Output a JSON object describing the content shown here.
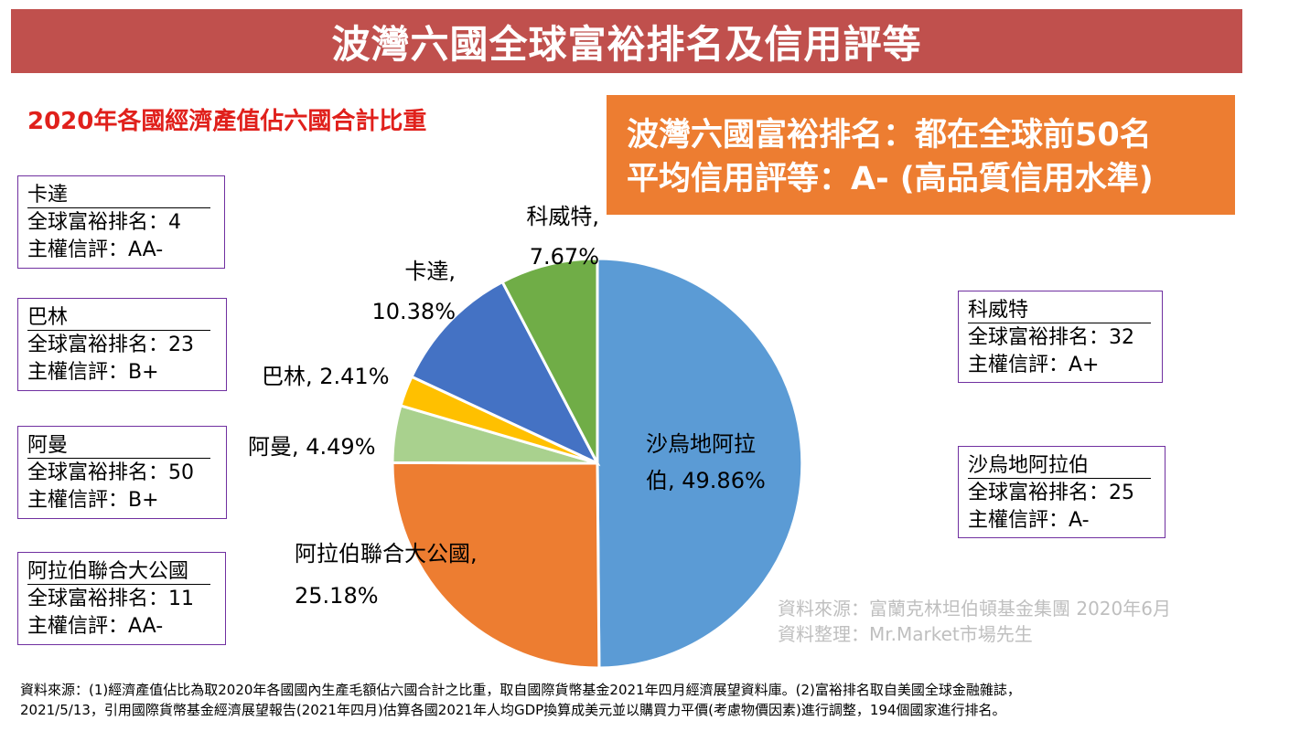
{
  "header": {
    "title": "波灣六國全球富裕排名及信用評等"
  },
  "subtitle": "2020年各國經濟產值佔六國合計比重",
  "highlight": {
    "line1": "波灣六國富裕排名：都在全球前50名",
    "line2": "平均信用評等：A- (高品質信用水準)"
  },
  "info_boxes": [
    {
      "name": "卡達",
      "rank": "全球富裕排名：4",
      "rating": "主權信評：AA-"
    },
    {
      "name": "巴林",
      "rank": "全球富裕排名：23",
      "rating": "主權信評：B+"
    },
    {
      "name": "阿曼",
      "rank": "全球富裕排名：50",
      "rating": "主權信評：B+"
    },
    {
      "name": "阿拉伯聯合大公國",
      "rank": "全球富裕排名：11",
      "rating": "主權信評：AA-"
    },
    {
      "name": "科威特",
      "rank": "全球富裕排名：32",
      "rating": "主權信評：A+"
    },
    {
      "name": "沙烏地阿拉伯",
      "rank": "全球富裕排名：25",
      "rating": "主權信評：A-"
    }
  ],
  "chart_data": {
    "type": "pie",
    "title": "2020年各國經濟產值佔六國合計比重",
    "slices": [
      {
        "category": "沙烏地阿拉伯",
        "value": 49.86,
        "color": "#5b9bd5",
        "label_lines": [
          "沙烏地阿拉",
          "伯, 49.86%"
        ]
      },
      {
        "category": "阿拉伯聯合大公國",
        "value": 25.18,
        "color": "#ed7d31",
        "label_lines": [
          "阿拉伯聯合大公國,",
          "25.18%"
        ]
      },
      {
        "category": "阿曼",
        "value": 4.49,
        "color": "#a9d18e",
        "label_lines": [
          "阿曼, 4.49%"
        ]
      },
      {
        "category": "巴林",
        "value": 2.41,
        "color": "#ffc000",
        "label_lines": [
          "巴林, 2.41%"
        ]
      },
      {
        "category": "卡達",
        "value": 10.38,
        "color": "#4472c4",
        "label_lines": [
          "卡達,",
          "10.38%"
        ]
      },
      {
        "category": "科威特",
        "value": 7.67,
        "color": "#70ad47",
        "label_lines": [
          "科威特,",
          "7.67%"
        ]
      }
    ]
  },
  "source_note": {
    "line1": "資料來源：富蘭克林坦伯頓基金集團 2020年6月",
    "line2": "資料整理：Mr.Market市場先生"
  },
  "footnote": {
    "line1": "資料來源：(1)經濟產值佔比為取2020年各國國內生產毛額佔六國合計之比重，取自國際貨幣基金2021年四月經濟展望資料庫。(2)富裕排名取自美國全球金融雜誌，",
    "line2": "2021/5/13，引用國際貨幣基金經濟展望報告(2021年四月)估算各國2021年人均GDP換算成美元並以購買力平價(考慮物價因素)進行調整，194個國家進行排名。"
  }
}
